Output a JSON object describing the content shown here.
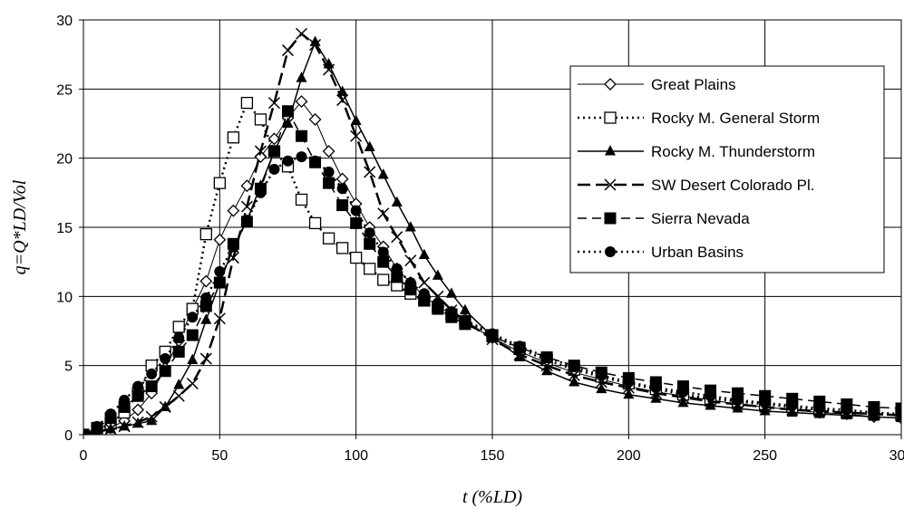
{
  "chart_data": {
    "type": "line",
    "title": "",
    "xlabel": "t (%LD)",
    "ylabel": "q=Q*LD/Vol",
    "xlim": [
      0,
      300
    ],
    "ylim": [
      0,
      30
    ],
    "xticks": [
      0,
      50,
      100,
      150,
      200,
      250,
      300
    ],
    "yticks": [
      0,
      5,
      10,
      15,
      20,
      25,
      30
    ],
    "grid": true,
    "legend_position": "top-right",
    "series": [
      {
        "name": "Great Plains",
        "marker": "diamond-open",
        "line": "solid-thin",
        "color": "#000000",
        "x": [
          0,
          5,
          10,
          15,
          20,
          25,
          30,
          35,
          40,
          45,
          50,
          55,
          60,
          65,
          70,
          75,
          80,
          85,
          90,
          95,
          100,
          105,
          110,
          115,
          120,
          125,
          130,
          135,
          140,
          150,
          160,
          170,
          180,
          190,
          200,
          210,
          220,
          230,
          240,
          250,
          260,
          270,
          280,
          290,
          300
        ],
        "y": [
          0,
          0.2,
          0.5,
          1.0,
          1.8,
          3.0,
          4.8,
          6.8,
          9.1,
          11.1,
          14.1,
          16.2,
          18.0,
          20.1,
          21.4,
          22.9,
          24.1,
          22.8,
          20.5,
          18.5,
          16.7,
          15.0,
          13.6,
          12.0,
          11.0,
          10.0,
          9.3,
          8.7,
          8.1,
          7.0,
          6.0,
          5.2,
          4.5,
          4.0,
          3.5,
          3.1,
          2.8,
          2.5,
          2.2,
          2.0,
          1.8,
          1.6,
          1.5,
          1.3,
          1.2
        ]
      },
      {
        "name": "Rocky M. General Storm",
        "marker": "square-open",
        "line": "dotted",
        "color": "#000000",
        "x": [
          0,
          5,
          10,
          15,
          20,
          25,
          30,
          35,
          40,
          45,
          50,
          55,
          60,
          65,
          70,
          75,
          80,
          85,
          90,
          95,
          100,
          105,
          110,
          115,
          120,
          125,
          130,
          135,
          140,
          150,
          160,
          170,
          180,
          190,
          200,
          210,
          220,
          230,
          240,
          250,
          260,
          270,
          280,
          290,
          300
        ],
        "y": [
          0,
          0.3,
          0.8,
          1.6,
          3.0,
          5.0,
          6.0,
          7.8,
          9.1,
          14.5,
          18.2,
          21.5,
          24.0,
          22.8,
          20.5,
          19.4,
          17.0,
          15.3,
          14.2,
          13.5,
          12.8,
          12.0,
          11.2,
          10.8,
          10.2,
          9.7,
          9.2,
          8.7,
          8.2,
          7.2,
          6.2,
          5.4,
          4.7,
          4.2,
          3.7,
          3.3,
          2.9,
          2.6,
          2.4,
          2.2,
          2.0,
          1.8,
          1.6,
          1.5,
          1.4
        ]
      },
      {
        "name": "Rocky M. Thunderstorm",
        "marker": "triangle-filled",
        "line": "solid",
        "color": "#000000",
        "x": [
          0,
          5,
          10,
          15,
          20,
          25,
          30,
          35,
          40,
          45,
          50,
          55,
          60,
          65,
          70,
          75,
          80,
          85,
          90,
          95,
          100,
          105,
          110,
          115,
          120,
          125,
          130,
          135,
          140,
          150,
          160,
          170,
          180,
          190,
          200,
          210,
          220,
          230,
          240,
          250,
          260,
          270,
          280,
          290,
          300
        ],
        "y": [
          0,
          0.2,
          0.4,
          0.6,
          0.8,
          1.0,
          2.0,
          3.6,
          5.4,
          8.3,
          11.0,
          13.5,
          15.5,
          18.0,
          20.5,
          22.5,
          25.8,
          28.4,
          26.8,
          24.8,
          22.7,
          20.8,
          18.8,
          16.8,
          15.0,
          13.0,
          11.5,
          10.2,
          9.0,
          7.1,
          5.6,
          4.6,
          3.8,
          3.3,
          2.9,
          2.6,
          2.3,
          2.1,
          1.9,
          1.7,
          1.6,
          1.5,
          1.4,
          1.3,
          1.2
        ]
      },
      {
        "name": "SW Desert Colorado Pl.",
        "marker": "x",
        "line": "long-dash",
        "color": "#000000",
        "x": [
          0,
          5,
          10,
          15,
          20,
          25,
          30,
          35,
          40,
          45,
          50,
          55,
          60,
          65,
          70,
          75,
          80,
          85,
          90,
          95,
          100,
          105,
          110,
          115,
          120,
          125,
          130,
          135,
          140,
          150,
          160,
          170,
          180,
          190,
          200,
          210,
          220,
          230,
          240,
          250,
          260,
          270,
          280,
          290,
          300
        ],
        "y": [
          0,
          0.2,
          0.4,
          0.6,
          0.9,
          1.3,
          2.0,
          2.8,
          3.7,
          5.5,
          8.4,
          12.8,
          16.5,
          20.5,
          24.0,
          27.8,
          29.0,
          28.2,
          26.4,
          24.2,
          21.6,
          19.0,
          16.0,
          14.3,
          12.6,
          11.0,
          10.0,
          9.0,
          8.2,
          6.9,
          5.8,
          5.0,
          4.3,
          3.8,
          3.4,
          3.0,
          2.7,
          2.4,
          2.2,
          2.0,
          1.8,
          1.7,
          1.6,
          1.5,
          1.4
        ]
      },
      {
        "name": "Sierra Nevada",
        "marker": "square-filled",
        "line": "medium-dash",
        "color": "#000000",
        "x": [
          0,
          5,
          10,
          15,
          20,
          25,
          30,
          35,
          40,
          45,
          50,
          55,
          60,
          65,
          70,
          75,
          80,
          85,
          90,
          95,
          100,
          105,
          110,
          115,
          120,
          125,
          130,
          135,
          140,
          150,
          160,
          170,
          180,
          190,
          200,
          210,
          220,
          230,
          240,
          250,
          260,
          270,
          280,
          290,
          300
        ],
        "y": [
          0,
          0.5,
          1.2,
          2.0,
          2.8,
          3.5,
          4.6,
          6.0,
          7.2,
          9.3,
          11.0,
          13.8,
          15.4,
          17.8,
          20.5,
          23.4,
          21.6,
          19.7,
          18.2,
          16.6,
          15.3,
          13.8,
          12.5,
          11.4,
          10.5,
          9.7,
          9.1,
          8.5,
          8.0,
          7.1,
          6.3,
          5.6,
          5.0,
          4.5,
          4.1,
          3.8,
          3.5,
          3.2,
          3.0,
          2.8,
          2.6,
          2.4,
          2.2,
          2.0,
          1.9
        ]
      },
      {
        "name": "Urban Basins",
        "marker": "circle-filled",
        "line": "dotted",
        "color": "#000000",
        "x": [
          0,
          5,
          10,
          15,
          20,
          25,
          30,
          35,
          40,
          45,
          50,
          55,
          60,
          65,
          70,
          75,
          80,
          85,
          90,
          95,
          100,
          105,
          110,
          115,
          120,
          125,
          130,
          135,
          140,
          150,
          160,
          170,
          180,
          190,
          200,
          210,
          220,
          230,
          240,
          250,
          260,
          270,
          280,
          290,
          300
        ],
        "y": [
          0,
          0.6,
          1.5,
          2.5,
          3.5,
          4.4,
          5.5,
          7.0,
          8.5,
          9.9,
          11.8,
          13.6,
          15.5,
          17.5,
          19.2,
          19.8,
          20.1,
          19.8,
          19.0,
          17.8,
          16.2,
          14.6,
          13.2,
          12.0,
          11.0,
          10.2,
          9.5,
          8.9,
          8.3,
          7.3,
          6.4,
          5.6,
          4.9,
          4.3,
          3.8,
          3.4,
          3.1,
          2.8,
          2.5,
          2.3,
          2.1,
          1.9,
          1.8,
          1.6,
          1.5
        ]
      }
    ]
  }
}
